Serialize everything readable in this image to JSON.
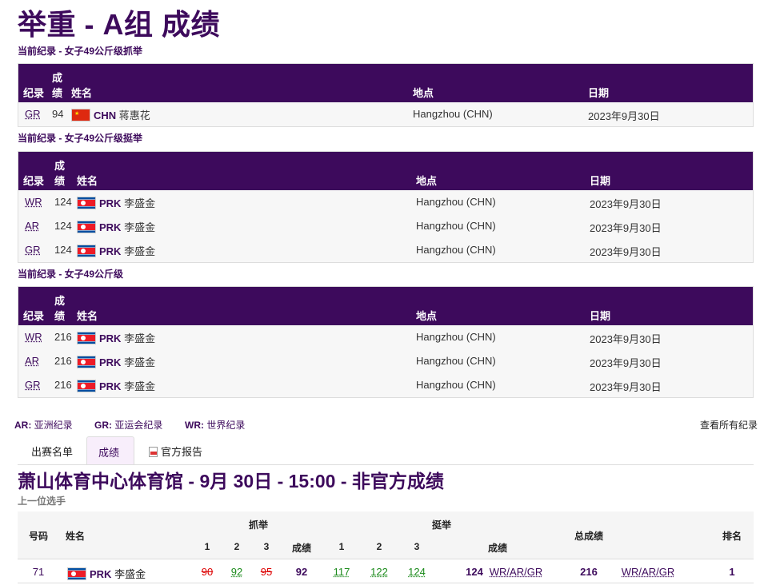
{
  "page_title": "举重 - A组 成绩",
  "record_tables": [
    {
      "title": "当前纪录 - 女子49公斤级抓举",
      "headers": {
        "record": "纪录",
        "result_1": "成",
        "result_2": "绩",
        "name": "姓名",
        "venue": "地点",
        "date": "日期"
      },
      "rows": [
        {
          "record": "GR",
          "result": "94",
          "flag": "CHN",
          "noc": "CHN",
          "name": "蒋惠花",
          "venue": "Hangzhou (CHN)",
          "date": "2023年9月30日"
        }
      ]
    },
    {
      "title": "当前纪录 - 女子49公斤级挺举",
      "headers": {
        "record": "纪录",
        "result_1": "成",
        "result_2": "绩",
        "name": "姓名",
        "venue": "地点",
        "date": "日期"
      },
      "rows": [
        {
          "record": "WR",
          "result": "124",
          "flag": "PRK",
          "noc": "PRK",
          "name": "李盛金",
          "venue": "Hangzhou (CHN)",
          "date": "2023年9月30日"
        },
        {
          "record": "AR",
          "result": "124",
          "flag": "PRK",
          "noc": "PRK",
          "name": "李盛金",
          "venue": "Hangzhou (CHN)",
          "date": "2023年9月30日"
        },
        {
          "record": "GR",
          "result": "124",
          "flag": "PRK",
          "noc": "PRK",
          "name": "李盛金",
          "venue": "Hangzhou (CHN)",
          "date": "2023年9月30日"
        }
      ]
    },
    {
      "title": "当前纪录 - 女子49公斤级",
      "headers": {
        "record": "纪录",
        "result_1": "成",
        "result_2": "绩",
        "name": "姓名",
        "venue": "地点",
        "date": "日期"
      },
      "rows": [
        {
          "record": "WR",
          "result": "216",
          "flag": "PRK",
          "noc": "PRK",
          "name": "李盛金",
          "venue": "Hangzhou (CHN)",
          "date": "2023年9月30日"
        },
        {
          "record": "AR",
          "result": "216",
          "flag": "PRK",
          "noc": "PRK",
          "name": "李盛金",
          "venue": "Hangzhou (CHN)",
          "date": "2023年9月30日"
        },
        {
          "record": "GR",
          "result": "216",
          "flag": "PRK",
          "noc": "PRK",
          "name": "李盛金",
          "venue": "Hangzhou (CHN)",
          "date": "2023年9月30日"
        }
      ]
    }
  ],
  "legend": [
    {
      "abbr": "AR:",
      "text": "亚洲纪录"
    },
    {
      "abbr": "GR:",
      "text": "亚运会纪录"
    },
    {
      "abbr": "WR:",
      "text": "世界纪录"
    }
  ],
  "view_all_records": "查看所有纪录",
  "tabs": [
    {
      "label": "出赛名单",
      "active": false
    },
    {
      "label": "成绩",
      "active": true
    },
    {
      "label": "官方报告",
      "active": false,
      "icon": "pdf-icon"
    }
  ],
  "session_title": "萧山体育中心体育馆 - 9月 30日 - 15:00 - 非官方成绩",
  "previous_athlete": "上一位选手",
  "results": {
    "headers": {
      "bib": "号码",
      "name": "姓名",
      "snatch": "抓举",
      "clean_jerk": "挺举",
      "total": "总成绩",
      "rank": "排名",
      "a1": "1",
      "a2": "2",
      "a3": "3",
      "result": "成绩"
    },
    "rows": [
      {
        "bib": "71",
        "flag": "PRK",
        "noc": "PRK",
        "name": "李盛金",
        "snatch": [
          {
            "value": "90",
            "status": "fail"
          },
          {
            "value": "92",
            "status": "good"
          },
          {
            "value": "95",
            "status": "fail"
          }
        ],
        "snatch_result": "92",
        "clean_jerk": [
          {
            "value": "117",
            "status": "good"
          },
          {
            "value": "122",
            "status": "good"
          },
          {
            "value": "124",
            "status": "good"
          }
        ],
        "cj_result": "124",
        "cj_records": "WR/AR/GR",
        "total": "216",
        "total_records": "WR/AR/GR",
        "rank": "1"
      }
    ]
  },
  "colors": {
    "brand": "#3d0a5c",
    "fail": "#dd0000",
    "good": "#1a8a1a"
  }
}
